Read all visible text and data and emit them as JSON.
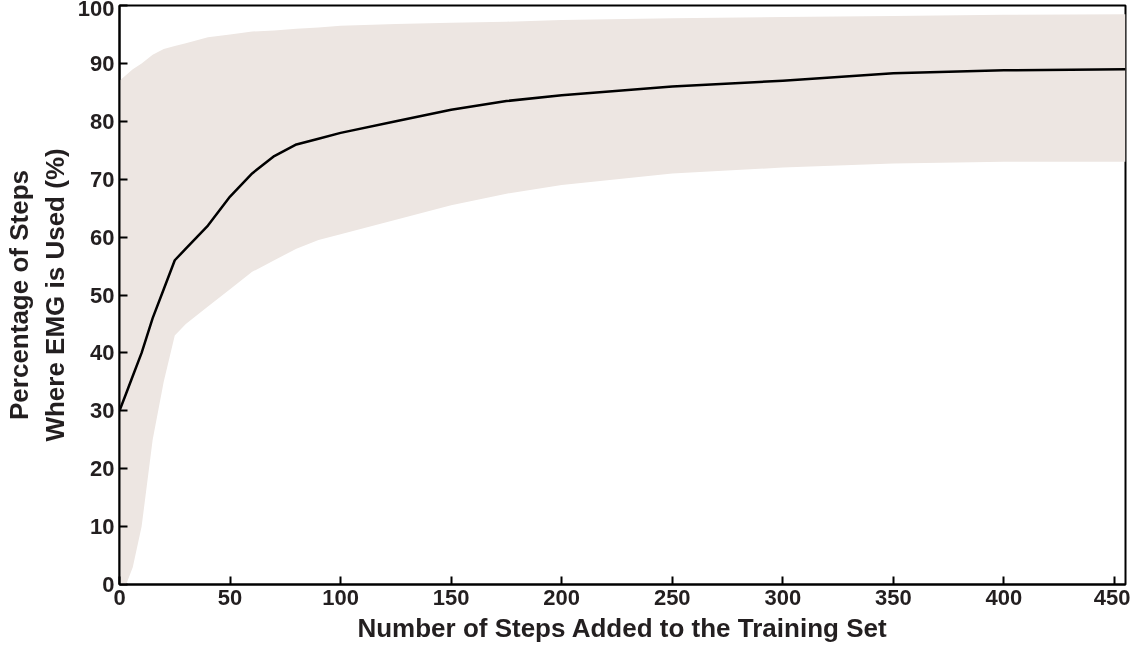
{
  "chart_data": {
    "type": "line",
    "xlabel": "Number of Steps Added to the Training Set",
    "ylabel": "Percentage of Steps\nWhere EMG is Used (%)",
    "xlim": [
      0,
      455
    ],
    "ylim": [
      0,
      100
    ],
    "xticks": [
      0,
      50,
      100,
      150,
      200,
      250,
      300,
      350,
      400,
      450
    ],
    "yticks": [
      0,
      10,
      20,
      30,
      40,
      50,
      60,
      70,
      80,
      90,
      100
    ],
    "grid": false,
    "series": [
      {
        "color": "#000000",
        "x": [
          0,
          3,
          6,
          10,
          15,
          20,
          25,
          30,
          40,
          50,
          60,
          70,
          80,
          90,
          100,
          125,
          150,
          175,
          200,
          250,
          300,
          350,
          400,
          455
        ],
        "values": [
          30,
          33,
          36,
          40,
          46,
          51,
          56,
          58,
          62,
          67,
          71,
          74,
          76,
          77,
          78,
          80,
          82,
          83.5,
          84.5,
          86,
          87,
          88.3,
          88.8,
          89
        ],
        "lower": [
          0,
          0,
          3,
          10,
          25,
          35,
          43,
          45,
          48,
          51,
          54,
          56,
          58,
          59.5,
          60.5,
          63,
          65.5,
          67.5,
          69,
          71,
          72,
          72.7,
          73,
          73
        ],
        "upper": [
          87,
          88,
          89,
          90,
          91.5,
          92.5,
          93,
          93.5,
          94.5,
          95,
          95.5,
          95.7,
          96,
          96.2,
          96.5,
          96.8,
          97,
          97.2,
          97.5,
          97.8,
          98,
          98.2,
          98.4,
          98.5
        ]
      }
    ]
  }
}
